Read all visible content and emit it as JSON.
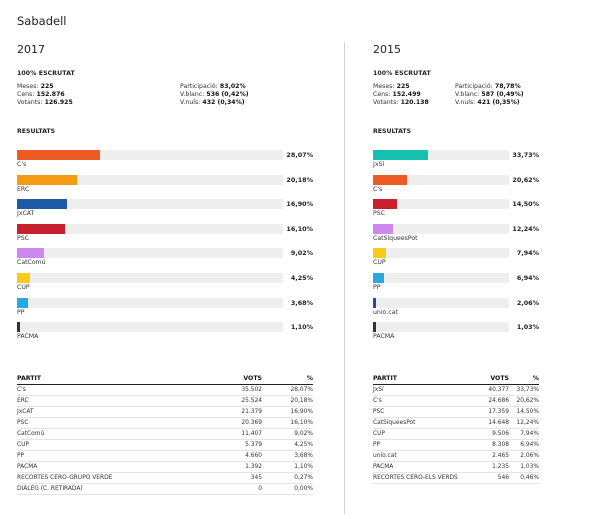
{
  "city": "Sabadell",
  "elections": [
    {
      "year": "2017",
      "escrutat": "100% ESCRUTAT",
      "stats": {
        "meses_label": "Meses:",
        "meses": "225",
        "cens_label": "Cens:",
        "cens": "152.876",
        "votants_label": "Votants:",
        "votants": "126.925",
        "participacio_label": "Participació:",
        "participacio": "83,02%",
        "vblanc_label": "V.blanc:",
        "vblanc": "536 (0,42%)",
        "vnuls_label": "V.nuls:",
        "vnuls": "432 (0,34%)"
      },
      "resultats_title": "RESULTATS",
      "bars": [
        {
          "name": "C's",
          "pct": "28,07%",
          "value": 28.07,
          "color": "#ee5a24"
        },
        {
          "name": "ERC",
          "pct": "20,18%",
          "value": 20.18,
          "color": "#f39c12"
        },
        {
          "name": "JxCAT",
          "pct": "16,90%",
          "value": 16.9,
          "color": "#1f5aa6"
        },
        {
          "name": "PSC",
          "pct": "16,10%",
          "value": 16.1,
          "color": "#c9202f"
        },
        {
          "name": "CatComú",
          "pct": "9,02%",
          "value": 9.02,
          "color": "#cc88ee"
        },
        {
          "name": "CUP",
          "pct": "4,25%",
          "value": 4.25,
          "color": "#f5cc1a"
        },
        {
          "name": "PP",
          "pct": "3,68%",
          "value": 3.68,
          "color": "#29a8e0"
        },
        {
          "name": "PACMA",
          "pct": "1,10%",
          "value": 1.1,
          "color": "#333333"
        }
      ],
      "table": {
        "headers": [
          "PARTIT",
          "VOTS",
          "%"
        ],
        "rows": [
          [
            "C's",
            "35.502",
            "28,07%"
          ],
          [
            "ERC",
            "25.524",
            "20,18%"
          ],
          [
            "JxCAT",
            "21.379",
            "16,90%"
          ],
          [
            "PSC",
            "20.369",
            "16,10%"
          ],
          [
            "CatComú",
            "11.407",
            "9,02%"
          ],
          [
            "CUP",
            "5.379",
            "4,25%"
          ],
          [
            "PP",
            "4.660",
            "3,68%"
          ],
          [
            "PACMA",
            "1.392",
            "1,10%"
          ],
          [
            "RECORTES CERO-GRUPO VERDE",
            "345",
            "0,27%"
          ],
          [
            "DIÀLEG (C. RETIRADA)",
            "0",
            "0,00%"
          ]
        ]
      }
    },
    {
      "year": "2015",
      "escrutat": "100% ESCRUTAT",
      "stats": {
        "meses_label": "Meses:",
        "meses": "225",
        "cens_label": "Cens:",
        "cens": "152.499",
        "votants_label": "Votants:",
        "votants": "120.138",
        "participacio_label": "Participació:",
        "participacio": "78,78%",
        "vblanc_label": "V.blanc:",
        "vblanc": "587 (0,49%)",
        "vnuls_label": "V.nuls:",
        "vnuls": "421 (0,35%)"
      },
      "resultats_title": "RESULTATS",
      "bars": [
        {
          "name": "JxSí",
          "pct": "33,73%",
          "value": 33.73,
          "color": "#17c1b0"
        },
        {
          "name": "C's",
          "pct": "20,62%",
          "value": 20.62,
          "color": "#ee5a24"
        },
        {
          "name": "PSC",
          "pct": "14,50%",
          "value": 14.5,
          "color": "#c9202f"
        },
        {
          "name": "CatSíqueesPot",
          "pct": "12,24%",
          "value": 12.24,
          "color": "#cc88ee"
        },
        {
          "name": "CUP",
          "pct": "7,94%",
          "value": 7.94,
          "color": "#f5cc1a"
        },
        {
          "name": "PP",
          "pct": "6,94%",
          "value": 6.94,
          "color": "#29a8e0"
        },
        {
          "name": "unio.cat",
          "pct": "2,06%",
          "value": 2.06,
          "color": "#1f4f99"
        },
        {
          "name": "PACMA",
          "pct": "1,03%",
          "value": 1.03,
          "color": "#333333"
        }
      ],
      "table": {
        "headers": [
          "PARTIT",
          "VOTS",
          "%"
        ],
        "rows": [
          [
            "JxSí",
            "40.377",
            "33,73%"
          ],
          [
            "C's",
            "24.686",
            "20,62%"
          ],
          [
            "PSC",
            "17.359",
            "14,50%"
          ],
          [
            "CatSíqueesPot",
            "14.648",
            "12,24%"
          ],
          [
            "CUP",
            "9.506",
            "7,94%"
          ],
          [
            "PP",
            "8.308",
            "6,94%"
          ],
          [
            "unio.cat",
            "2.465",
            "2,06%"
          ],
          [
            "PACMA",
            "1.235",
            "1,03%"
          ],
          [
            "RECORTES CERO-ELS VERDS",
            "546",
            "0,46%"
          ]
        ]
      }
    }
  ]
}
